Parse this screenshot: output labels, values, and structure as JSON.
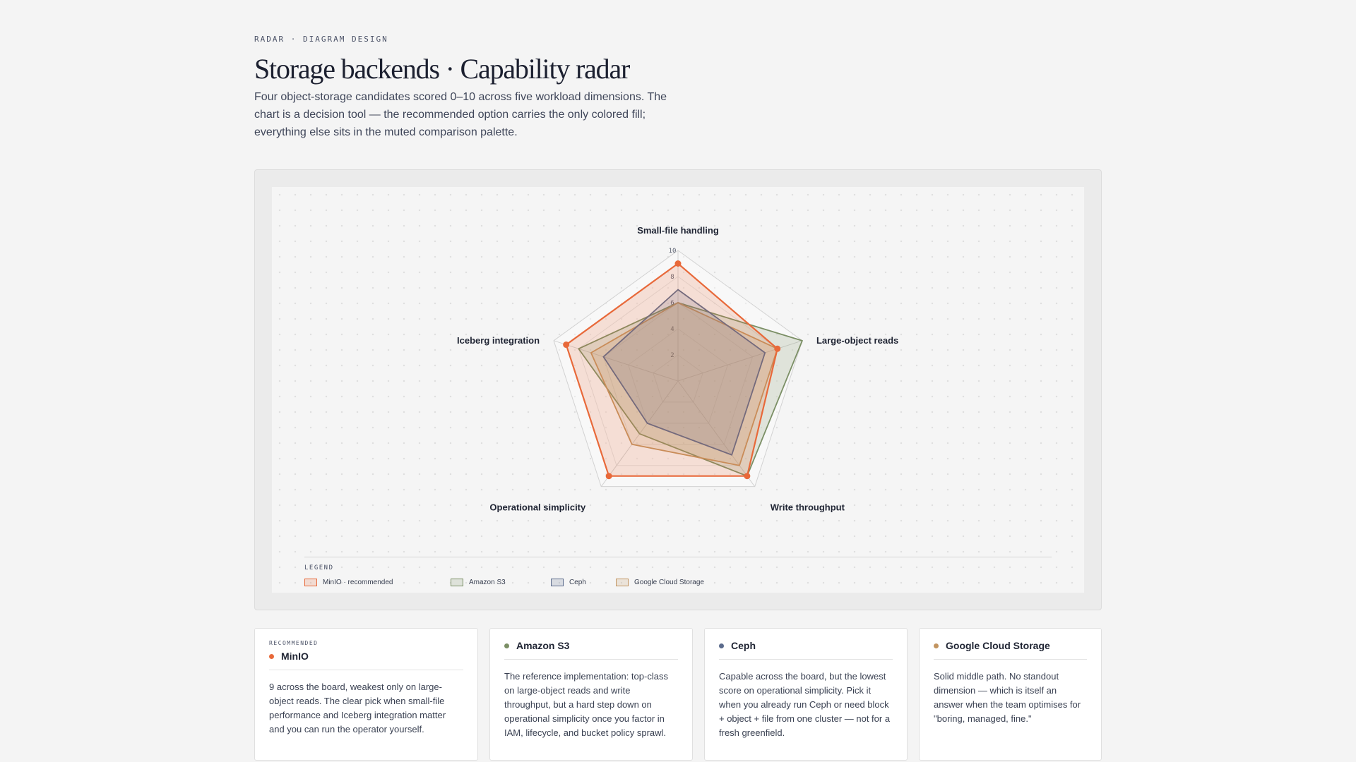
{
  "header": {
    "eyebrow": "RADAR · DIAGRAM DESIGN",
    "title": "Storage backends · Capability radar",
    "subtitle": "Four object-storage candidates scored 0–10 across five workload dimensions. The chart is a decision tool — the recommended option carries the only colored fill; everything else sits in the muted comparison palette."
  },
  "legend": {
    "title": "LEGEND",
    "items": [
      {
        "label": "MinIO · recommended",
        "color": "#e8693a"
      },
      {
        "label": "Amazon S3",
        "color": "#7b8f65"
      },
      {
        "label": "Ceph",
        "color": "#5b6b8c"
      },
      {
        "label": "Google Cloud Storage",
        "color": "#c29460"
      }
    ]
  },
  "chart_data": {
    "type": "radar",
    "axes": [
      "Small-file handling",
      "Large-object reads",
      "Write throughput",
      "Operational simplicity",
      "Iceberg integration"
    ],
    "range": [
      0,
      10
    ],
    "ticks": [
      "2",
      "4",
      "6",
      "8",
      "10"
    ],
    "series": [
      {
        "name": "Amazon S3",
        "color": "#7b8f65",
        "values": [
          6,
          10,
          9,
          5,
          8
        ]
      },
      {
        "name": "Google Cloud Storage",
        "color": "#c29460",
        "values": [
          6,
          8,
          8,
          6,
          7
        ]
      },
      {
        "name": "Ceph",
        "color": "#5b6b8c",
        "values": [
          7,
          7,
          7,
          4,
          6
        ]
      },
      {
        "name": "MinIO · recommended",
        "color": "#e8693a",
        "values": [
          9,
          8,
          9,
          9,
          9
        ]
      }
    ]
  },
  "cards": [
    {
      "eyebrow": "RECOMMENDED",
      "name": "MinIO",
      "color": "#e8693a",
      "body": "9 across the board, weakest only on large-object reads. The clear pick when small-file performance and Iceberg integration matter and you can run the operator yourself."
    },
    {
      "name": "Amazon S3",
      "color": "#7b8f65",
      "body": "The reference implementation: top-class on large-object reads and write throughput, but a hard step down on operational simplicity once you factor in IAM, lifecycle, and bucket policy sprawl."
    },
    {
      "name": "Ceph",
      "color": "#5b6b8c",
      "body": "Capable across the board, but the lowest score on operational simplicity. Pick it when you already run Ceph or need block + object + file from one cluster — not for a fresh greenfield."
    },
    {
      "name": "Google Cloud Storage",
      "color": "#c29460",
      "body": "Solid middle path. No standout dimension — which is itself an answer when the team optimises for \"boring, managed, fine.\""
    }
  ]
}
